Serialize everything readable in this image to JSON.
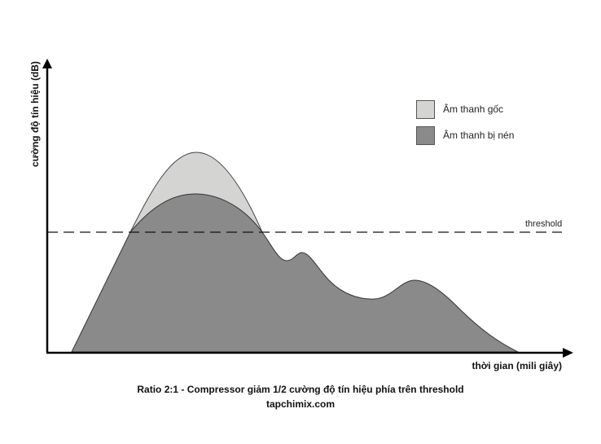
{
  "diagram": {
    "y_axis_label": "cường độ tín hiệu (dB)",
    "x_axis_label": "thời gian (mili giây)",
    "threshold_label": "threshold",
    "legend": [
      {
        "label": "Âm thanh gốc",
        "color": "#d4d4d2"
      },
      {
        "label": "Âm thanh bị nén",
        "color": "#8a8a8a"
      }
    ],
    "caption": "Ratio 2:1 - Compressor giảm 1/2 cường độ tín hiệu phía trên threshold",
    "source": "tapchimix.com",
    "colors": {
      "original_fill": "#d4d4d2",
      "compressed_fill": "#8a8a8a",
      "outline": "#333333",
      "axis": "#000000"
    }
  }
}
